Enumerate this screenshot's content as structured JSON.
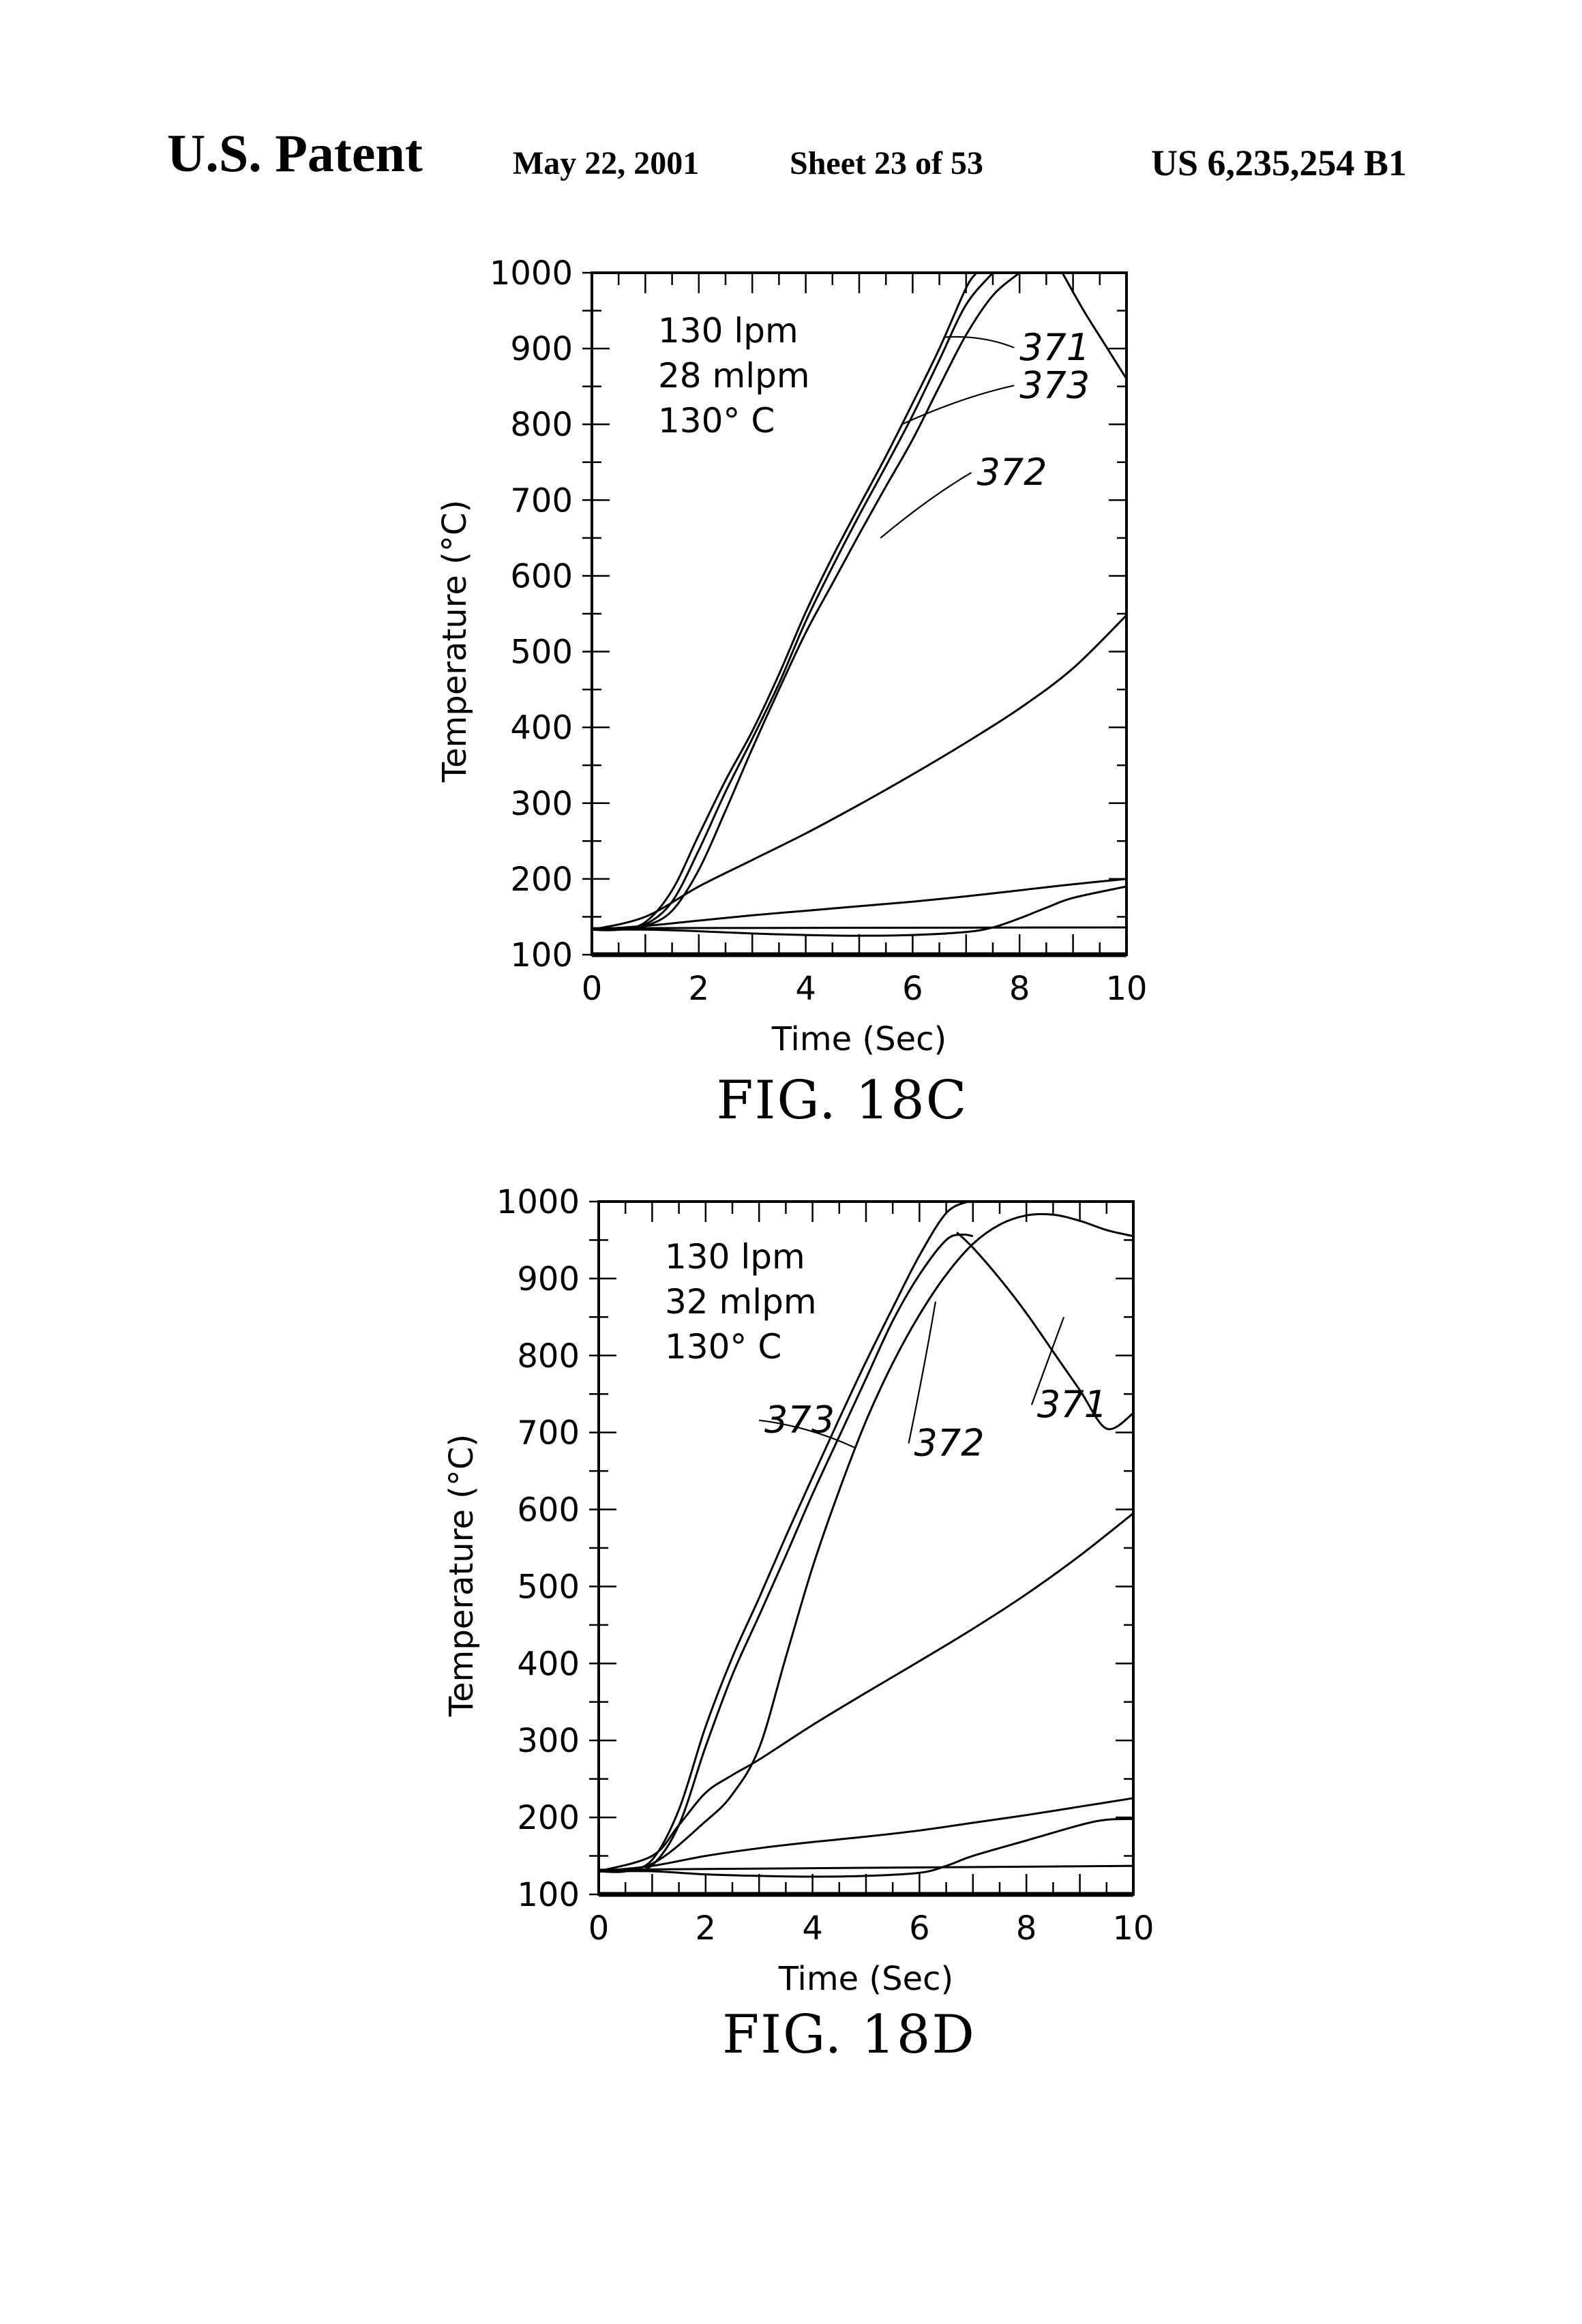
{
  "header": {
    "left": "U.S. Patent",
    "date": "May 22, 2001",
    "sheet": "Sheet 23 of 53",
    "number": "US 6,235,254 B1"
  },
  "chart_data": [
    {
      "type": "line",
      "figure": "FIG. 18C",
      "xlabel": "Time (Sec)",
      "ylabel": "Temperature (°C)",
      "xlim": [
        0,
        10
      ],
      "ylim": [
        100,
        1000
      ],
      "x_ticks": [
        "0",
        "2",
        "4",
        "6",
        "8",
        "10"
      ],
      "y_ticks": [
        "100",
        "200",
        "300",
        "400",
        "500",
        "600",
        "700",
        "800",
        "900",
        "1000"
      ],
      "conditions": [
        "130 lpm",
        "28 mlpm",
        "130° C"
      ],
      "callouts": [
        {
          "label": "371",
          "at": [
            8.0,
            885
          ],
          "points_to": [
            6.6,
            915
          ]
        },
        {
          "label": "373",
          "at": [
            8.0,
            835
          ],
          "points_to": [
            5.8,
            800
          ]
        },
        {
          "label": "372",
          "at": [
            7.2,
            720
          ],
          "points_to": [
            5.4,
            650
          ]
        }
      ],
      "series": [
        {
          "label": "371",
          "x": [
            0,
            0.5,
            1,
            1.5,
            2,
            2.5,
            3,
            3.5,
            4,
            4.5,
            5,
            5.5,
            6,
            6.5,
            7,
            7.2
          ],
          "y": [
            133,
            133,
            143,
            185,
            258,
            330,
            395,
            470,
            552,
            625,
            692,
            758,
            828,
            900,
            980,
            1000
          ]
        },
        {
          "label": "373",
          "x": [
            0,
            0.5,
            1,
            1.5,
            2,
            2.5,
            3,
            3.5,
            4,
            4.5,
            5,
            5.5,
            6,
            6.5,
            7,
            7.5
          ],
          "y": [
            133,
            133,
            140,
            170,
            238,
            315,
            385,
            458,
            540,
            612,
            680,
            745,
            812,
            885,
            958,
            1000
          ]
        },
        {
          "label": "372",
          "x": [
            0,
            0.5,
            1,
            1.5,
            2,
            2.5,
            3,
            3.5,
            4,
            4.5,
            5,
            5.5,
            6,
            6.5,
            7,
            7.5,
            8
          ],
          "y": [
            133,
            133,
            138,
            158,
            212,
            290,
            372,
            450,
            525,
            590,
            655,
            718,
            780,
            850,
            918,
            970,
            1000
          ]
        },
        {
          "label": "",
          "x": [
            8.8,
            9.2,
            9.6,
            10
          ],
          "y": [
            1000,
            950,
            905,
            860
          ]
        },
        {
          "label": "",
          "x": [
            0,
            1,
            2,
            3,
            4,
            5,
            6,
            7,
            8,
            9,
            10
          ],
          "y": [
            133,
            150,
            190,
            225,
            260,
            298,
            338,
            380,
            425,
            478,
            548
          ]
        },
        {
          "label": "",
          "x": [
            0,
            1,
            2,
            3,
            4,
            5,
            6,
            7,
            8,
            9,
            10
          ],
          "y": [
            133,
            138,
            145,
            152,
            158,
            164,
            170,
            177,
            185,
            193,
            200
          ]
        },
        {
          "label": "",
          "x": [
            0,
            1,
            2,
            3,
            4,
            5,
            6,
            7,
            7.5,
            8,
            8.5,
            9,
            10
          ],
          "y": [
            133,
            133,
            131,
            128,
            126,
            125,
            126,
            130,
            136,
            148,
            162,
            175,
            190
          ]
        },
        {
          "label": "",
          "x": [
            0,
            10
          ],
          "y": [
            135,
            136
          ]
        }
      ]
    },
    {
      "type": "line",
      "figure": "FIG. 18D",
      "xlabel": "Time (Sec)",
      "ylabel": "Temperature (°C)",
      "xlim": [
        0,
        10
      ],
      "ylim": [
        100,
        1000
      ],
      "x_ticks": [
        "0",
        "2",
        "4",
        "6",
        "8",
        "10"
      ],
      "y_ticks": [
        "100",
        "200",
        "300",
        "400",
        "500",
        "600",
        "700",
        "800",
        "900",
        "1000"
      ],
      "conditions": [
        "130 lpm",
        "32 mlpm",
        "130° C"
      ],
      "callouts": [
        {
          "label": "373",
          "at": [
            3.1,
            700
          ],
          "points_to": [
            4.8,
            680
          ]
        },
        {
          "label": "372",
          "at": [
            5.9,
            670
          ],
          "points_to": [
            6.3,
            870
          ]
        },
        {
          "label": "371",
          "at": [
            8.2,
            720
          ],
          "points_to": [
            8.7,
            850
          ]
        }
      ],
      "series": [
        {
          "label": "373",
          "x": [
            0,
            0.5,
            1,
            1.5,
            2,
            2.5,
            3,
            3.5,
            4,
            4.5,
            5,
            5.5,
            6,
            6.5,
            6.9
          ],
          "y": [
            130,
            130,
            145,
            210,
            318,
            408,
            485,
            565,
            642,
            718,
            792,
            862,
            930,
            985,
            1000
          ]
        },
        {
          "label": "372",
          "x": [
            0,
            0.5,
            1,
            1.5,
            2,
            2.5,
            3,
            3.5,
            4,
            4.5,
            5,
            5.5,
            6,
            6.5,
            6.8,
            7
          ],
          "y": [
            130,
            130,
            138,
            190,
            292,
            385,
            462,
            540,
            620,
            695,
            770,
            845,
            905,
            950,
            957,
            955
          ]
        },
        {
          "label": "371",
          "x": [
            0,
            1,
            2,
            2.5,
            3,
            3.5,
            4,
            4.5,
            5,
            5.5,
            6,
            6.5,
            7,
            7.5,
            8,
            8.5,
            9,
            9.5,
            10
          ],
          "y": [
            130,
            140,
            195,
            230,
            290,
            408,
            525,
            625,
            715,
            790,
            853,
            905,
            945,
            970,
            982,
            983,
            975,
            963,
            955
          ]
        },
        {
          "label": "",
          "x": [
            6.7,
            7,
            7.5,
            8,
            8.5,
            9,
            9.5,
            10
          ],
          "y": [
            960,
            940,
            900,
            855,
            805,
            755,
            705,
            725
          ]
        },
        {
          "label": "",
          "x": [
            0,
            1,
            1.5,
            2,
            2.5,
            3,
            4,
            5,
            6,
            7,
            8,
            9,
            10
          ],
          "y": [
            130,
            150,
            190,
            232,
            255,
            275,
            320,
            362,
            403,
            445,
            490,
            540,
            595
          ]
        },
        {
          "label": "",
          "x": [
            0,
            1,
            2,
            3,
            4,
            5,
            6,
            7,
            8,
            9,
            10
          ],
          "y": [
            130,
            137,
            150,
            160,
            168,
            175,
            183,
            193,
            203,
            214,
            225
          ]
        },
        {
          "label": "",
          "x": [
            0,
            1,
            2,
            3,
            4,
            5,
            6,
            6.5,
            7,
            8,
            9,
            9.5,
            10
          ],
          "y": [
            130,
            130,
            126,
            124,
            123,
            124,
            128,
            137,
            150,
            170,
            190,
            197,
            198
          ]
        },
        {
          "label": "",
          "x": [
            0,
            10
          ],
          "y": [
            132,
            137
          ]
        }
      ]
    }
  ]
}
